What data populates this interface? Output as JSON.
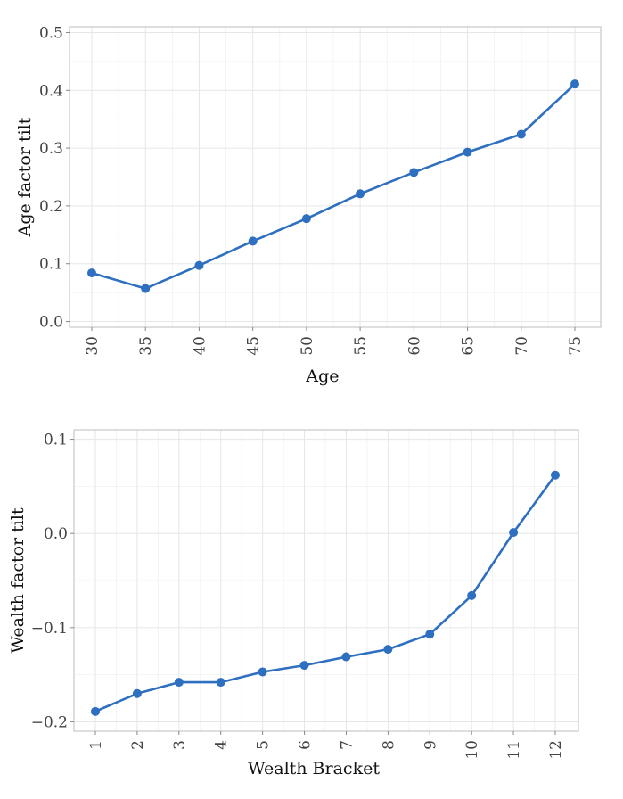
{
  "chart_data": [
    {
      "type": "line",
      "title": "",
      "xlabel": "Age",
      "ylabel": "Age factor tilt",
      "categories": [
        "30",
        "35",
        "40",
        "45",
        "50",
        "55",
        "60",
        "65",
        "70",
        "75"
      ],
      "series": [
        {
          "values": [
            0.084,
            0.057,
            0.097,
            0.139,
            0.178,
            0.221,
            0.258,
            0.293,
            0.324,
            0.411
          ]
        }
      ],
      "yticks": [
        0.0,
        0.1,
        0.2,
        0.3,
        0.4,
        0.5
      ],
      "ytick_labels": [
        "0.0",
        "0.1",
        "0.2",
        "0.3",
        "0.4",
        "0.5"
      ],
      "ylim": [
        -0.01,
        0.51
      ],
      "grid": true,
      "color": "#2f6fc0"
    },
    {
      "type": "line",
      "title": "",
      "xlabel": "Wealth Bracket",
      "ylabel": "Wealth factor tilt",
      "categories": [
        "1",
        "2",
        "3",
        "4",
        "5",
        "6",
        "7",
        "8",
        "9",
        "10",
        "11",
        "12"
      ],
      "series": [
        {
          "values": [
            -0.189,
            -0.17,
            -0.158,
            -0.158,
            -0.147,
            -0.14,
            -0.131,
            -0.123,
            -0.107,
            -0.066,
            0.001,
            0.062
          ]
        }
      ],
      "yticks": [
        -0.2,
        -0.1,
        0.0,
        0.1
      ],
      "ytick_labels": [
        "−0.2",
        "−0.1",
        "0.0",
        "0.1"
      ],
      "ylim": [
        -0.21,
        0.11
      ],
      "grid": true,
      "color": "#2f6fc0"
    }
  ]
}
